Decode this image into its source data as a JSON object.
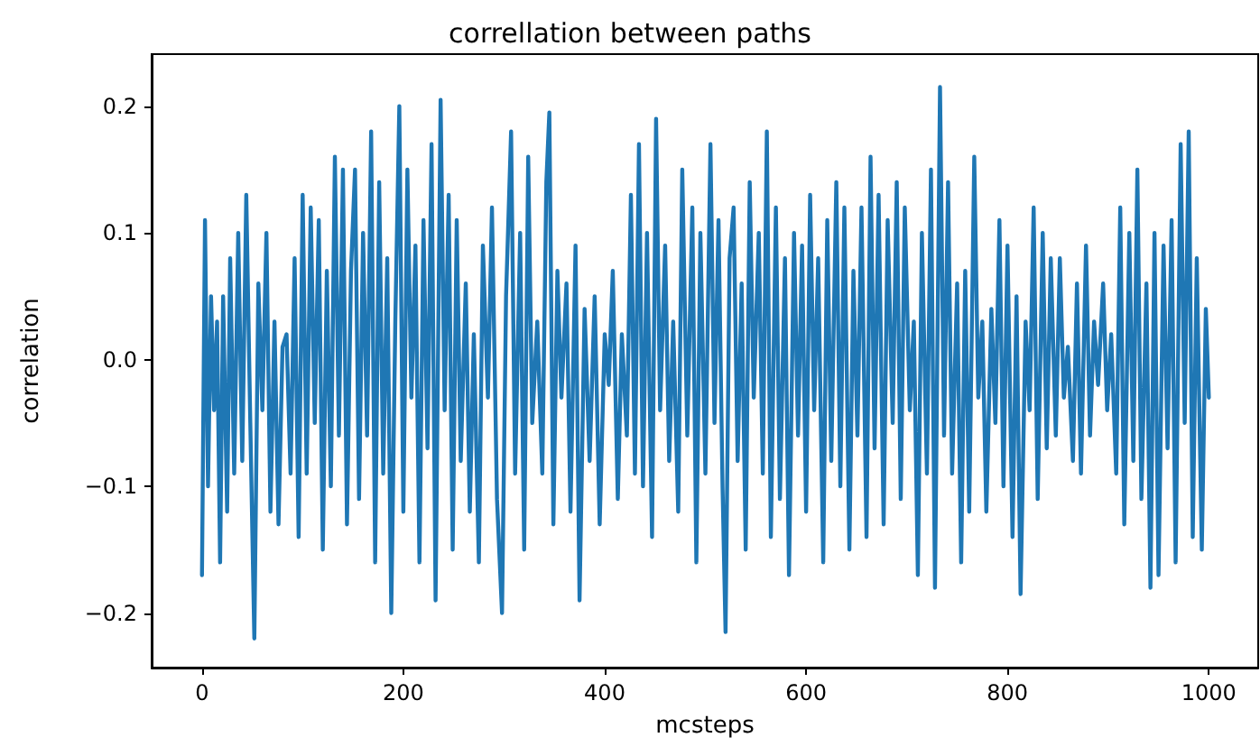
{
  "chart_data": {
    "type": "line",
    "title": "correllation between paths",
    "xlabel": "mcsteps",
    "ylabel": "correlation",
    "xlim": [
      -50,
      1049
    ],
    "xticks": [
      0,
      200,
      400,
      600,
      800,
      1000
    ],
    "ylim": [
      -0.243,
      0.241
    ],
    "yticks": [
      {
        "value": -0.2,
        "label": "−0.2"
      },
      {
        "value": -0.1,
        "label": "−0.1"
      },
      {
        "value": 0,
        "label": "0.0"
      },
      {
        "value": 0.1,
        "label": "0.1"
      },
      {
        "value": 0.2,
        "label": "0.2"
      }
    ],
    "grid": false,
    "marker": "none",
    "line_style": "solid",
    "series": [
      {
        "color": "#1f77b4",
        "x": [
          0,
          3,
          6,
          9,
          12,
          15,
          18,
          21,
          25,
          28,
          32,
          36,
          40,
          44,
          48,
          52,
          56,
          60,
          64,
          68,
          72,
          76,
          80,
          84,
          88,
          92,
          96,
          100,
          104,
          108,
          112,
          116,
          120,
          124,
          128,
          132,
          136,
          140,
          144,
          148,
          152,
          156,
          160,
          164,
          168,
          172,
          176,
          180,
          184,
          188,
          192,
          196,
          200,
          204,
          208,
          212,
          216,
          220,
          224,
          228,
          232,
          237,
          241,
          245,
          249,
          253,
          257,
          262,
          266,
          270,
          275,
          279,
          284,
          288,
          293,
          298,
          302,
          307,
          311,
          316,
          320,
          324,
          328,
          333,
          338,
          342,
          345,
          349,
          353,
          357,
          362,
          366,
          371,
          375,
          380,
          385,
          390,
          395,
          400,
          404,
          408,
          413,
          417,
          422,
          426,
          430,
          434,
          438,
          442,
          447,
          451,
          455,
          460,
          464,
          468,
          473,
          477,
          482,
          487,
          491,
          495,
          500,
          505,
          509,
          513,
          517,
          520,
          524,
          528,
          532,
          536,
          540,
          544,
          548,
          553,
          557,
          561,
          565,
          570,
          574,
          579,
          583,
          588,
          592,
          596,
          600,
          604,
          608,
          612,
          617,
          621,
          625,
          630,
          634,
          638,
          643,
          647,
          651,
          655,
          660,
          664,
          668,
          672,
          677,
          681,
          686,
          690,
          694,
          698,
          703,
          707,
          711,
          715,
          720,
          724,
          728,
          733,
          737,
          741,
          745,
          750,
          754,
          758,
          762,
          767,
          771,
          775,
          779,
          784,
          788,
          792,
          796,
          800,
          805,
          809,
          813,
          818,
          822,
          826,
          830,
          835,
          839,
          843,
          848,
          852,
          856,
          860,
          865,
          869,
          873,
          878,
          882,
          886,
          890,
          895,
          899,
          903,
          908,
          912,
          916,
          921,
          925,
          929,
          933,
          938,
          942,
          946,
          950,
          955,
          959,
          963,
          967,
          972,
          976,
          980,
          984,
          988,
          993,
          997,
          1000
        ],
        "values": [
          -0.17,
          0.11,
          -0.1,
          0.05,
          -0.04,
          0.03,
          -0.16,
          0.05,
          -0.12,
          0.08,
          -0.09,
          0.1,
          -0.08,
          0.13,
          -0.05,
          -0.22,
          0.06,
          -0.04,
          0.1,
          -0.12,
          0.03,
          -0.13,
          0.01,
          0.02,
          -0.09,
          0.08,
          -0.14,
          0.13,
          -0.09,
          0.12,
          -0.05,
          0.11,
          -0.15,
          0.07,
          -0.1,
          0.16,
          -0.06,
          0.15,
          -0.13,
          0.07,
          0.15,
          -0.11,
          0.1,
          -0.06,
          0.18,
          -0.16,
          0.14,
          -0.09,
          0.08,
          -0.2,
          0.03,
          0.2,
          -0.12,
          0.15,
          -0.03,
          0.09,
          -0.16,
          0.11,
          -0.07,
          0.17,
          -0.19,
          0.205,
          -0.04,
          0.13,
          -0.15,
          0.11,
          -0.08,
          0.06,
          -0.12,
          0.02,
          -0.16,
          0.09,
          -0.03,
          0.12,
          -0.11,
          -0.2,
          0.05,
          0.18,
          -0.09,
          0.1,
          -0.15,
          0.16,
          -0.05,
          0.03,
          -0.09,
          0.14,
          0.195,
          -0.13,
          0.07,
          -0.03,
          0.06,
          -0.12,
          0.09,
          -0.19,
          0.04,
          -0.08,
          0.05,
          -0.13,
          0.02,
          -0.02,
          0.07,
          -0.11,
          0.02,
          -0.06,
          0.13,
          -0.09,
          0.17,
          -0.1,
          0.1,
          -0.14,
          0.19,
          -0.04,
          0.09,
          -0.08,
          0.03,
          -0.12,
          0.15,
          -0.06,
          0.12,
          -0.16,
          0.1,
          -0.09,
          0.17,
          -0.05,
          0.11,
          -0.1,
          -0.215,
          0.08,
          0.12,
          -0.08,
          0.06,
          -0.15,
          0.14,
          -0.03,
          0.1,
          -0.09,
          0.18,
          -0.14,
          0.12,
          -0.11,
          0.08,
          -0.17,
          0.1,
          -0.06,
          0.09,
          -0.12,
          0.13,
          -0.04,
          0.08,
          -0.16,
          0.11,
          -0.08,
          0.14,
          -0.1,
          0.12,
          -0.15,
          0.07,
          -0.06,
          0.12,
          -0.14,
          0.16,
          -0.07,
          0.13,
          -0.13,
          0.11,
          -0.05,
          0.14,
          -0.11,
          0.12,
          -0.04,
          0.03,
          -0.17,
          0.1,
          -0.09,
          0.15,
          -0.18,
          0.215,
          -0.06,
          0.14,
          -0.09,
          0.06,
          -0.16,
          0.07,
          -0.12,
          0.16,
          -0.03,
          0.03,
          -0.12,
          0.04,
          -0.05,
          0.11,
          -0.1,
          0.09,
          -0.14,
          0.05,
          -0.185,
          0.03,
          -0.04,
          0.12,
          -0.11,
          0.1,
          -0.07,
          0.08,
          -0.06,
          0.08,
          -0.03,
          0.01,
          -0.08,
          0.06,
          -0.09,
          0.09,
          -0.06,
          0.03,
          -0.02,
          0.06,
          -0.04,
          0.02,
          -0.09,
          0.12,
          -0.13,
          0.1,
          -0.08,
          0.15,
          -0.11,
          0.06,
          -0.18,
          0.1,
          -0.17,
          0.09,
          -0.07,
          0.11,
          -0.16,
          0.17,
          -0.05,
          0.18,
          -0.14,
          0.08,
          -0.15,
          0.04,
          -0.03
        ]
      }
    ]
  }
}
